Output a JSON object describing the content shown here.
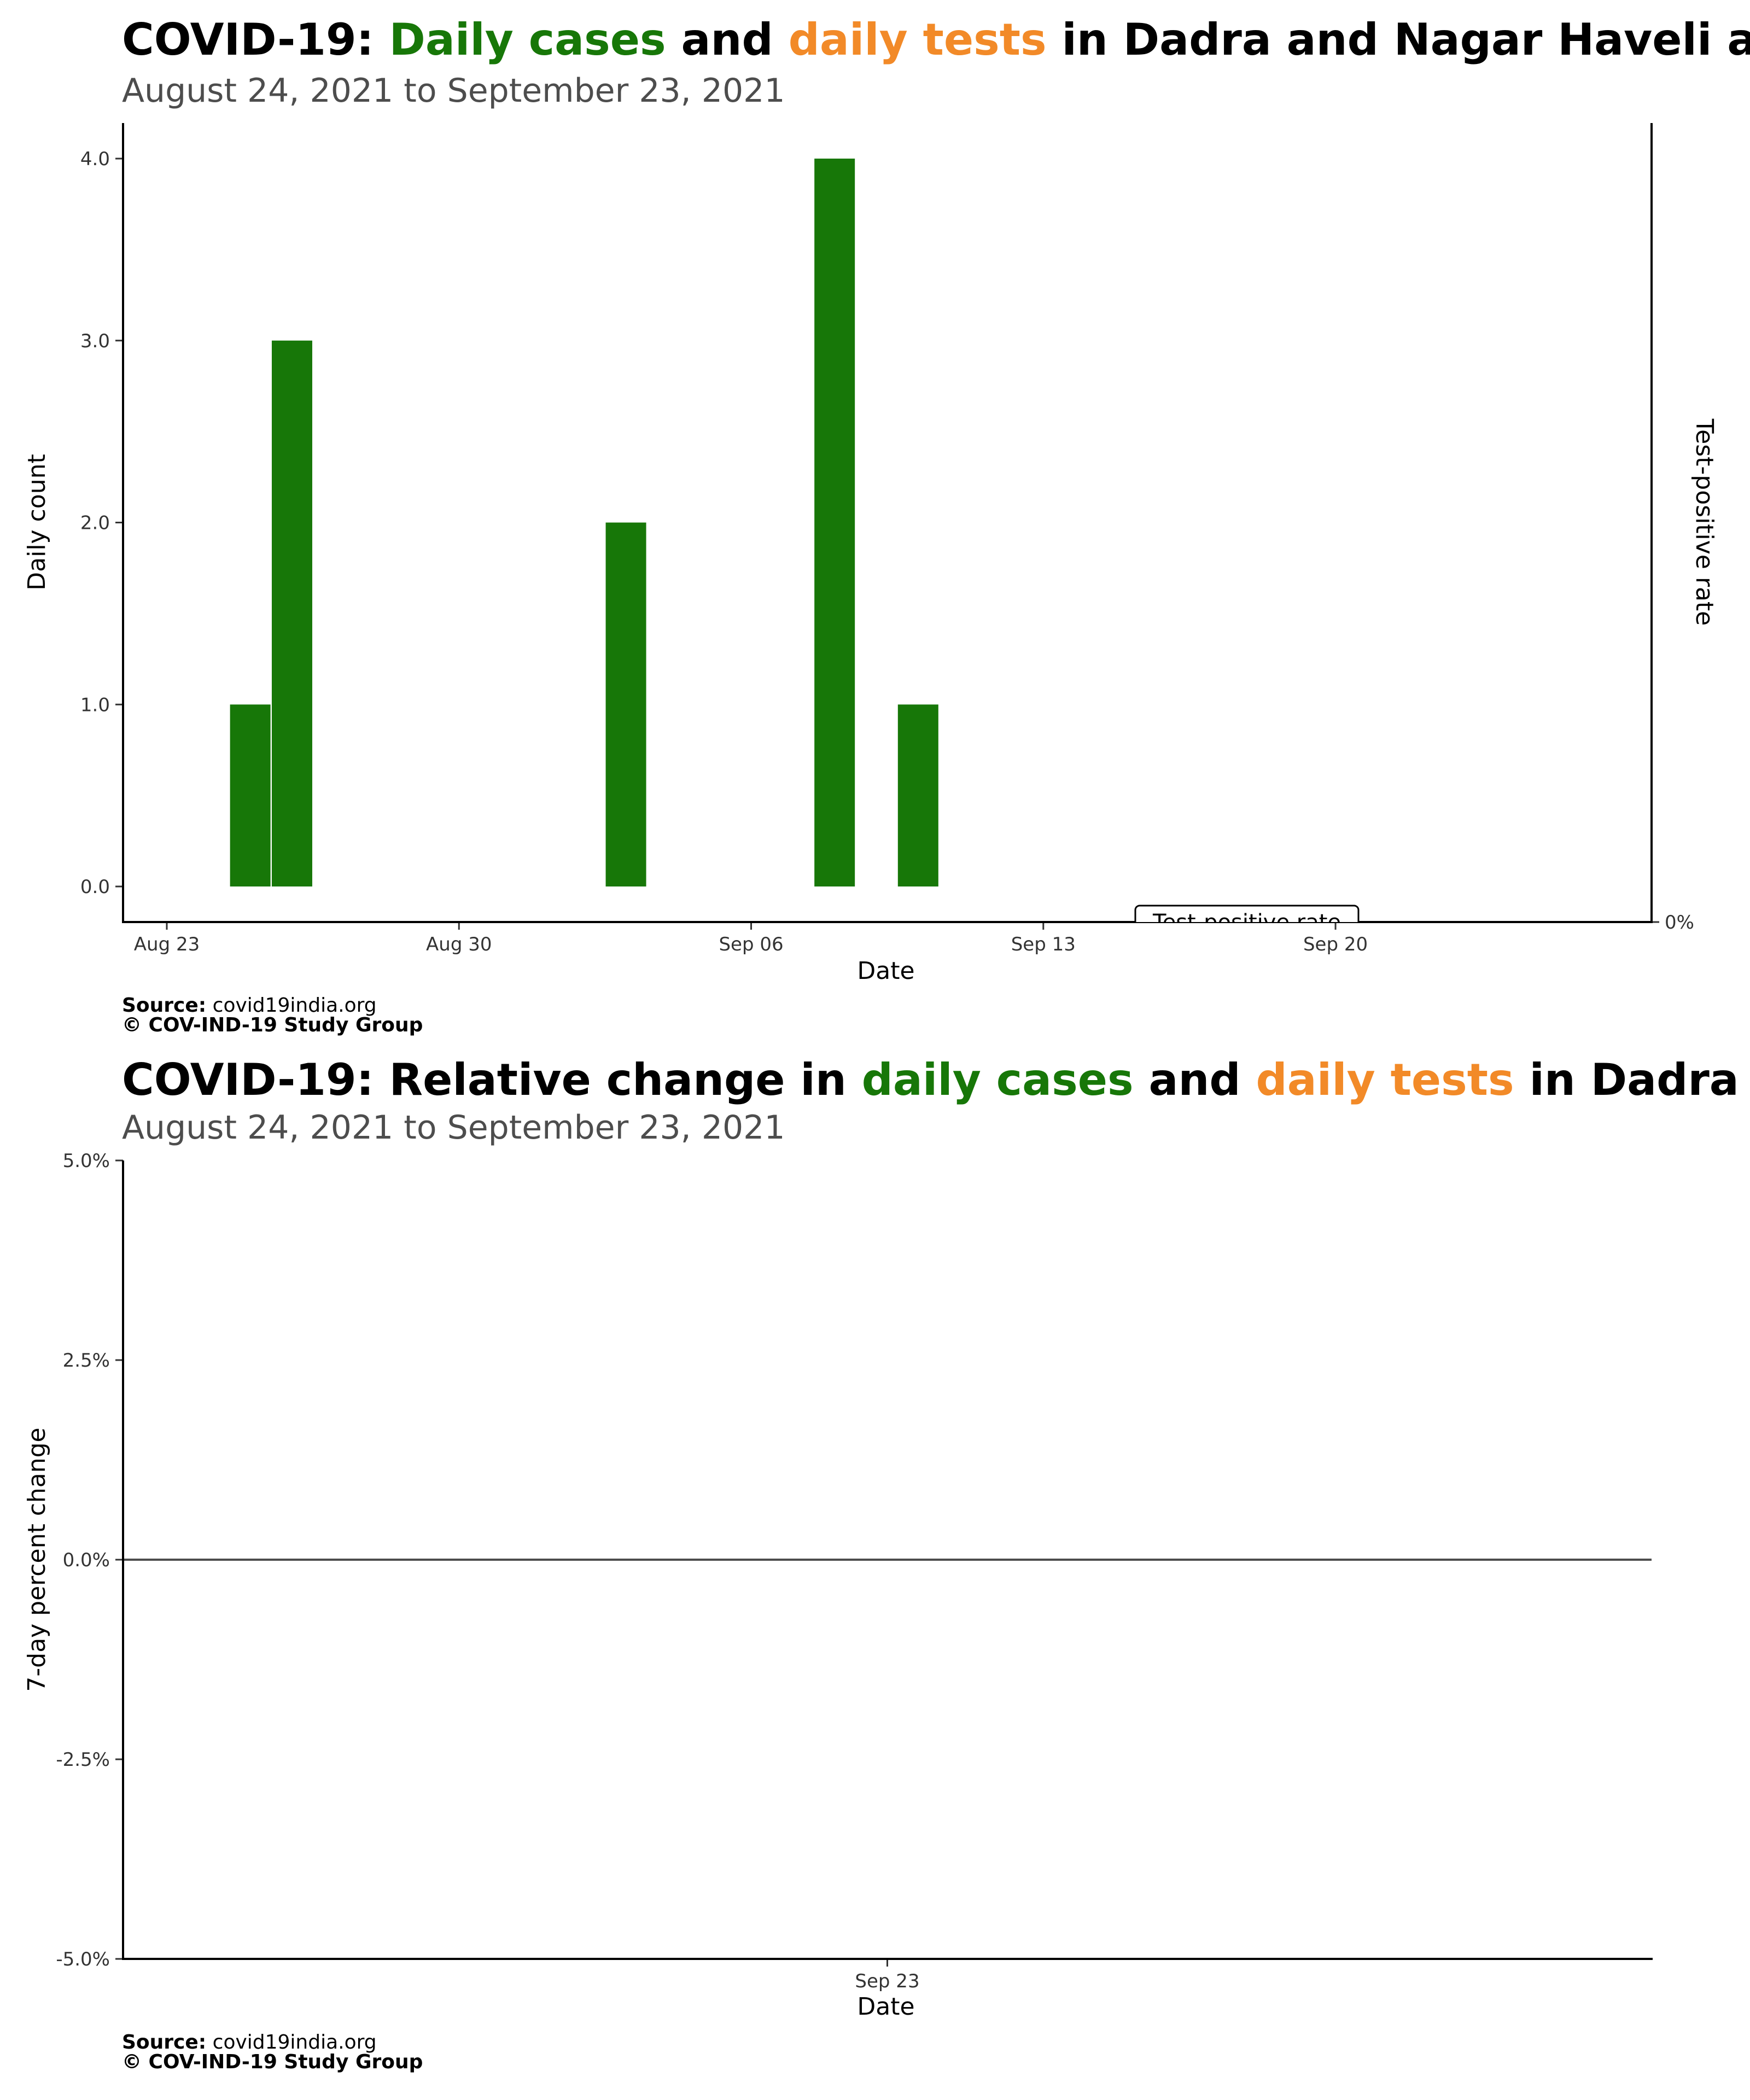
{
  "colors": {
    "cases": "#177708",
    "tests": "#f28a28",
    "text": "#000000",
    "subtitle": "#4d4d4d",
    "tick": "#333333"
  },
  "panels": [
    {
      "title": {
        "prefix": "COVID-19: ",
        "cases": "Daily cases",
        "mid": " and ",
        "tests": "daily tests",
        "suffix": " in Dadra and Nagar Haveli and Daman and Diu"
      },
      "subtitle": "August 24, 2021 to September 23, 2021",
      "source_label": "Source:",
      "source_value": " covid19india.org",
      "copyright": "© COV-IND-19 Study Group"
    },
    {
      "title": {
        "prefix": "COVID-19: Relative change in ",
        "cases": "daily cases",
        "mid": " and ",
        "tests": "daily tests",
        "suffix": " in Dadra and Nagar Haveli and Daman and Diu"
      },
      "subtitle": "August 24, 2021 to September 23, 2021",
      "source_label": "Source:",
      "source_value": " covid19india.org",
      "copyright": "© COV-IND-19 Study Group"
    }
  ],
  "chart_data": [
    {
      "type": "bar",
      "xlabel": "Date",
      "ylabel": "Daily count",
      "y2label": "Test-positive rate",
      "xlim": [
        "2021-08-23",
        "2021-09-26"
      ],
      "ylim": [
        -0.2,
        4.2
      ],
      "yticks": [
        "0.0",
        "1.0",
        "2.0",
        "3.0",
        "4.0"
      ],
      "y2ticks": [
        "0%"
      ],
      "xticks": [
        {
          "date": "2021-08-23",
          "label": "Aug 23"
        },
        {
          "date": "2021-08-30",
          "label": "Aug 30"
        },
        {
          "date": "2021-09-06",
          "label": "Sep 06"
        },
        {
          "date": "2021-09-13",
          "label": "Sep 13"
        },
        {
          "date": "2021-09-20",
          "label": "Sep 20"
        }
      ],
      "series": [
        {
          "name": "Daily cases",
          "x": [
            "2021-08-25",
            "2021-08-26",
            "2021-09-03",
            "2021-09-08",
            "2021-09-10"
          ],
          "values": [
            1,
            3,
            2,
            4,
            1
          ]
        }
      ],
      "annotation": "Test-positive rate",
      "grid": false
    },
    {
      "type": "line",
      "xlabel": "Date",
      "ylabel": "7-day percent change",
      "ylim": [
        -5,
        5
      ],
      "yticks": [
        "-5.0%",
        "-2.5%",
        "0.0%",
        "2.5%",
        "5.0%"
      ],
      "xticks": [
        {
          "date": "2021-09-23",
          "label": "Sep 23"
        }
      ],
      "reference_line": 0,
      "grid": false
    }
  ]
}
